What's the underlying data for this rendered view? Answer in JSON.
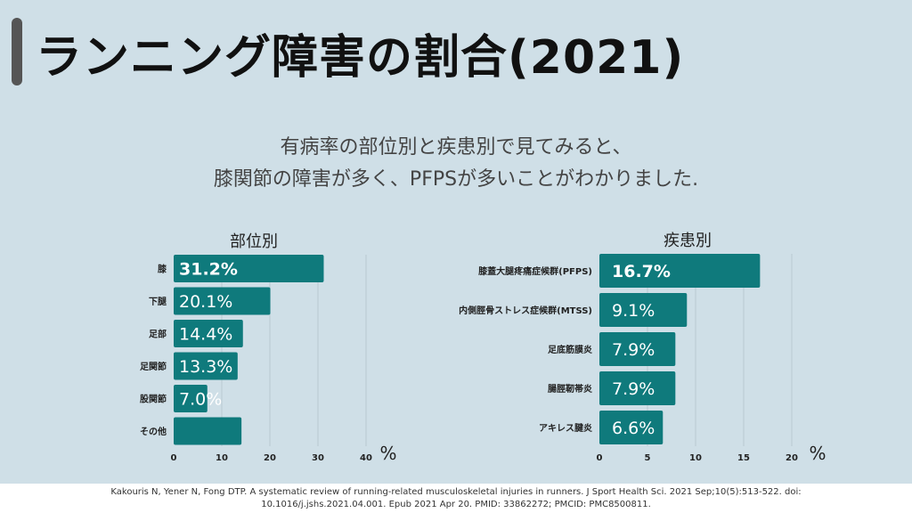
{
  "title": "ランニング障害の割合(2021)",
  "subtitle": [
    "有病率の部位別と疾患別で見てみると、",
    "膝関節の障害が多く、PFPSが多いことがわかりました."
  ],
  "footer": [
    "Kakouris N, Yener N, Fong DTP. A systematic review of running-related musculoskeletal injuries in runners. J Sport Health Sci. 2021 Sep;10(5):513-522. doi:",
    "10.1016/j.jshs.2021.04.001. Epub 2021 Apr 20. PMID: 33862272; PMCID: PMC8500811."
  ],
  "colors": {
    "bar": "#0f7a7c",
    "background": "#cfdfe7"
  },
  "chart_data": [
    {
      "type": "bar",
      "orientation": "horizontal",
      "title": "部位別",
      "xlabel": "%",
      "unit_label": "%",
      "categories": [
        "膝",
        "下腿",
        "足部",
        "足関節",
        "股関節",
        "その他"
      ],
      "values": [
        31.2,
        20.1,
        14.4,
        13.3,
        7.0,
        14.1
      ],
      "labels": [
        "31.2%",
        "20.1%",
        "14.4%",
        "13.3%",
        "7.0%",
        ""
      ],
      "xlim": [
        0,
        40
      ],
      "xticks": [
        0,
        10,
        20,
        30,
        40
      ],
      "grid": true
    },
    {
      "type": "bar",
      "orientation": "horizontal",
      "title": "疾患別",
      "xlabel": "%",
      "unit_label": "%",
      "categories": [
        "膝蓋大腿疼痛症候群(PFPS)",
        "内側脛骨ストレス症候群(MTSS)",
        "足底筋膜炎",
        "腸脛靭帯炎",
        "アキレス腱炎"
      ],
      "values": [
        16.7,
        9.1,
        7.9,
        7.9,
        6.6
      ],
      "labels": [
        "16.7%",
        "9.1%",
        "7.9%",
        "7.9%",
        "6.6%"
      ],
      "xlim": [
        0,
        20
      ],
      "xticks": [
        0,
        5,
        10,
        15,
        20
      ],
      "grid": true
    }
  ]
}
